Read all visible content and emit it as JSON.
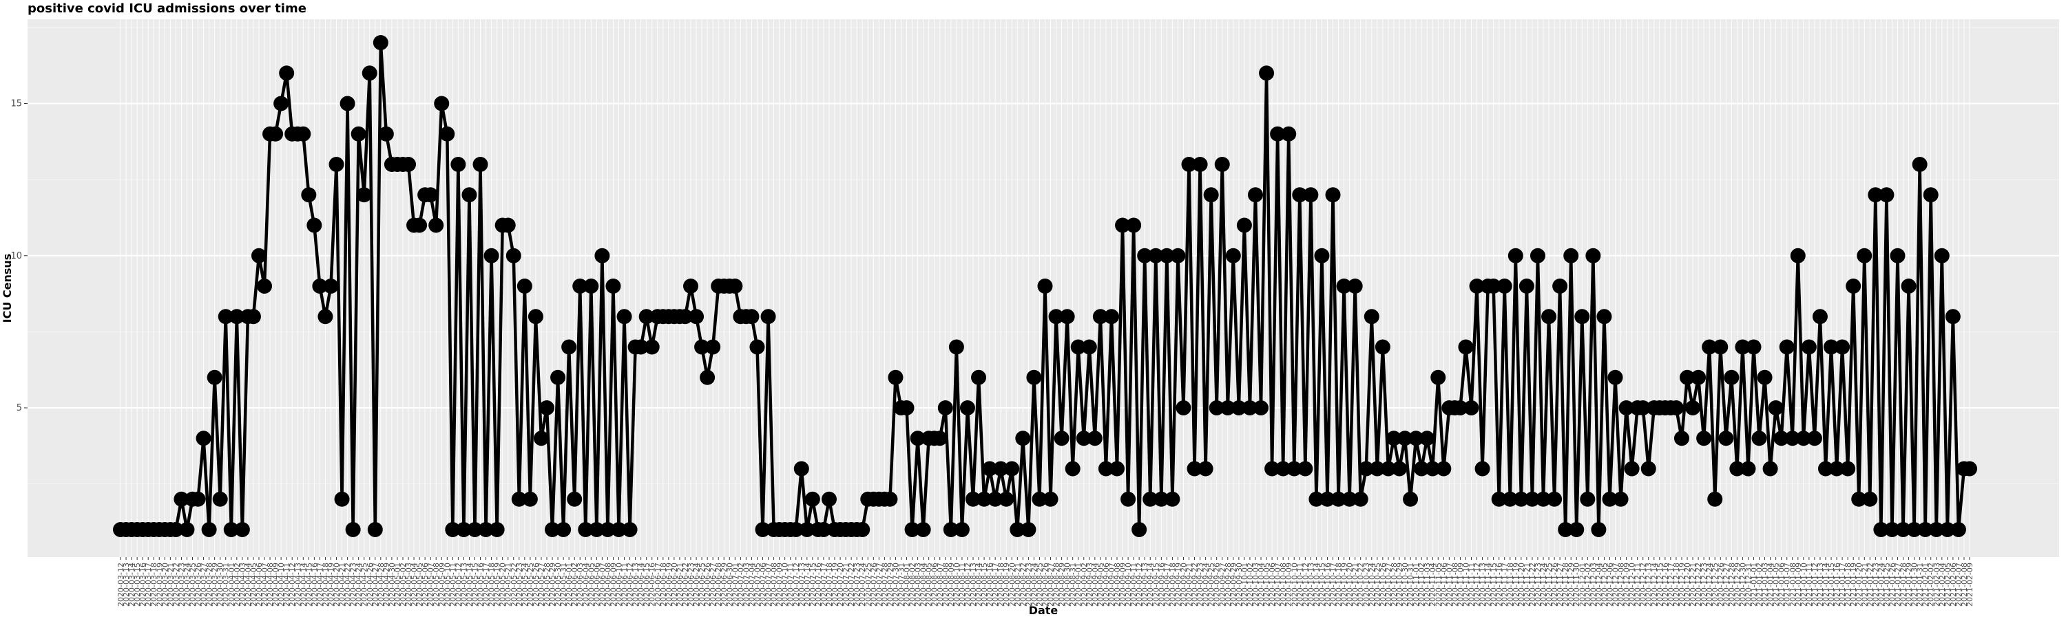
{
  "chart_data": {
    "type": "line",
    "title": "positive covid ICU admissions over time",
    "xlabel": "Date",
    "ylabel": "ICU Census",
    "x_start": "2020-03-12",
    "ylim": [
      0.3,
      17.7
    ],
    "yticks": [
      5,
      10,
      15
    ],
    "series": [
      {
        "values": [
          1,
          1,
          1,
          1,
          1,
          1,
          1,
          1,
          1,
          1,
          1,
          2,
          1,
          2,
          2,
          4,
          1,
          6,
          2,
          8,
          1,
          8,
          1,
          8,
          8,
          10,
          9,
          14,
          14,
          15,
          16,
          14,
          14,
          14,
          12,
          11,
          9,
          8,
          9,
          13,
          2,
          15,
          1,
          14,
          12,
          16,
          1,
          17,
          14,
          13,
          13,
          13,
          13,
          11,
          11,
          12,
          12,
          11,
          15,
          14,
          1,
          13,
          1,
          12,
          1,
          13,
          1,
          10,
          1,
          11,
          11,
          10,
          2,
          9,
          2,
          8,
          4,
          5,
          1,
          6,
          1,
          7,
          2,
          9,
          1,
          9,
          1,
          10,
          1,
          9,
          1,
          8,
          1,
          7,
          7,
          8,
          7,
          8,
          8,
          8,
          8,
          8,
          8,
          9,
          8,
          7,
          6,
          7,
          9,
          9,
          9,
          9,
          8,
          8,
          8,
          7,
          1,
          8,
          1,
          1,
          1,
          1,
          1,
          3,
          1,
          2,
          1,
          1,
          2,
          1,
          1,
          1,
          1,
          1,
          1,
          2,
          2,
          2,
          2,
          2,
          6,
          5,
          5,
          1,
          4,
          1,
          4,
          4,
          4,
          5,
          1,
          7,
          1,
          5,
          2,
          6,
          2,
          3,
          2,
          3,
          2,
          3,
          1,
          4,
          1,
          6,
          2,
          9,
          2,
          8,
          4,
          8,
          3,
          7,
          4,
          7,
          4,
          8,
          3,
          8,
          3,
          11,
          2,
          11,
          1,
          10,
          2,
          10,
          2,
          10,
          2,
          10,
          5,
          13,
          3,
          13,
          3,
          12,
          5,
          13,
          5,
          10,
          5,
          11,
          5,
          12,
          5,
          16,
          3,
          14,
          3,
          14,
          3,
          12,
          3,
          12,
          2,
          10,
          2,
          12,
          2,
          9,
          2,
          9,
          2,
          3,
          8,
          3,
          7,
          3,
          4,
          3,
          4,
          2,
          4,
          3,
          4,
          3,
          6,
          3,
          5,
          5,
          5,
          7,
          5,
          9,
          3,
          9,
          9,
          2,
          9,
          2,
          10,
          2,
          9,
          2,
          10,
          2,
          8,
          2,
          9,
          1,
          10,
          1,
          8,
          2,
          10,
          1,
          8,
          2,
          6,
          2,
          5,
          3,
          5,
          5,
          3,
          5,
          5,
          5,
          5,
          5,
          4,
          6,
          5,
          6,
          4,
          7,
          2,
          7,
          4,
          6,
          3,
          7,
          3,
          7,
          4,
          6,
          3,
          5,
          4,
          7,
          4,
          10,
          4,
          7,
          4,
          8,
          3,
          7,
          3,
          7,
          3,
          9,
          2,
          10,
          2,
          12,
          1,
          12,
          1,
          10,
          1,
          9,
          1,
          13,
          1,
          12,
          1,
          10,
          1,
          8,
          1,
          3,
          3
        ]
      }
    ]
  }
}
